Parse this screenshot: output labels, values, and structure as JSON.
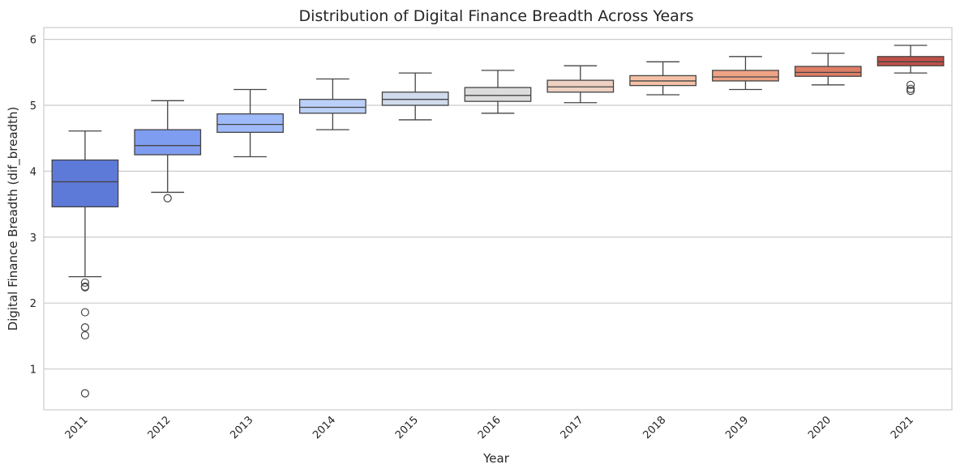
{
  "chart_data": {
    "type": "box",
    "title": "Distribution of Digital Finance Breadth Across Years",
    "xlabel": "Year",
    "ylabel": "Digital Finance Breadth (dif_breadth)",
    "ylim": [
      0.38,
      6.18
    ],
    "yticks": [
      1,
      2,
      3,
      4,
      5,
      6
    ],
    "grid": "horizontal",
    "categories": [
      "2011",
      "2012",
      "2013",
      "2014",
      "2015",
      "2016",
      "2017",
      "2018",
      "2019",
      "2020",
      "2021"
    ],
    "series": [
      {
        "category": "2011",
        "whisker_low": 2.4,
        "q1": 3.46,
        "median": 3.84,
        "q3": 4.17,
        "whisker_high": 4.61,
        "outliers": [
          2.31,
          2.25,
          2.24,
          1.86,
          1.63,
          1.51,
          0.63
        ],
        "color": "#5e7ad9"
      },
      {
        "category": "2012",
        "whisker_low": 3.68,
        "q1": 4.25,
        "median": 4.39,
        "q3": 4.63,
        "whisker_high": 5.07,
        "outliers": [
          3.59
        ],
        "color": "#7f9df0"
      },
      {
        "category": "2013",
        "whisker_low": 4.22,
        "q1": 4.59,
        "median": 4.71,
        "q3": 4.87,
        "whisker_high": 5.24,
        "outliers": [],
        "color": "#9ebaf8"
      },
      {
        "category": "2014",
        "whisker_low": 4.63,
        "q1": 4.88,
        "median": 4.97,
        "q3": 5.09,
        "whisker_high": 5.4,
        "outliers": [],
        "color": "#bbd0f8"
      },
      {
        "category": "2015",
        "whisker_low": 4.78,
        "q1": 5.0,
        "median": 5.09,
        "q3": 5.2,
        "whisker_high": 5.49,
        "outliers": [],
        "color": "#d1dbee"
      },
      {
        "category": "2016",
        "whisker_low": 4.88,
        "q1": 5.06,
        "median": 5.15,
        "q3": 5.27,
        "whisker_high": 5.53,
        "outliers": [],
        "color": "#dcdcdc"
      },
      {
        "category": "2017",
        "whisker_low": 5.04,
        "q1": 5.2,
        "median": 5.28,
        "q3": 5.38,
        "whisker_high": 5.6,
        "outliers": [],
        "color": "#eed1c2"
      },
      {
        "category": "2018",
        "whisker_low": 5.16,
        "q1": 5.3,
        "median": 5.37,
        "q3": 5.45,
        "whisker_high": 5.66,
        "outliers": [],
        "color": "#f5c1a6"
      },
      {
        "category": "2019",
        "whisker_low": 5.24,
        "q1": 5.37,
        "median": 5.43,
        "q3": 5.53,
        "whisker_high": 5.74,
        "outliers": [],
        "color": "#eea385"
      },
      {
        "category": "2020",
        "whisker_low": 5.31,
        "q1": 5.44,
        "median": 5.5,
        "q3": 5.59,
        "whisker_high": 5.79,
        "outliers": [],
        "color": "#de7e66"
      },
      {
        "category": "2021",
        "whisker_low": 5.49,
        "q1": 5.6,
        "median": 5.66,
        "q3": 5.74,
        "whisker_high": 5.91,
        "outliers": [
          5.31,
          5.25,
          5.22
        ],
        "color": "#bf5048"
      }
    ]
  },
  "colors": {
    "grid": "#cccccc",
    "frame": "#cccccc",
    "box_edge": "#444444",
    "text": "#262626",
    "background": "#ffffff"
  }
}
